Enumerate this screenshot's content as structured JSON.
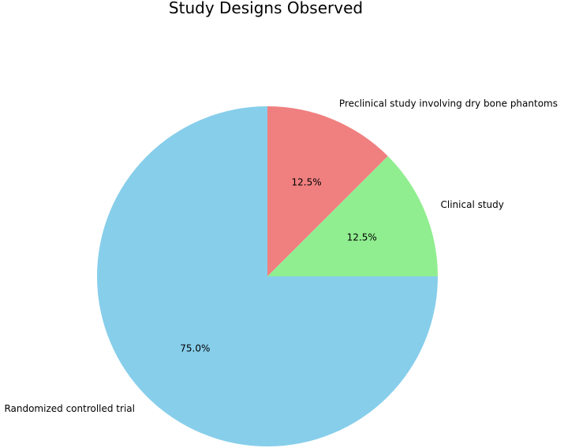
{
  "chart_data": {
    "type": "pie",
    "title": "Study Designs Observed",
    "labels": [
      "Preclinical study involving dry bone phantoms",
      "Clinical study",
      "Randomized controlled trial"
    ],
    "values": [
      12.5,
      12.5,
      75.0
    ],
    "percent_labels": [
      "12.5%",
      "12.5%",
      "75.0%"
    ],
    "colors": [
      "#f08080",
      "#90ee90",
      "#87ceeb"
    ],
    "start_angle_deg": 90,
    "direction": "clockwise",
    "legend": "none"
  }
}
